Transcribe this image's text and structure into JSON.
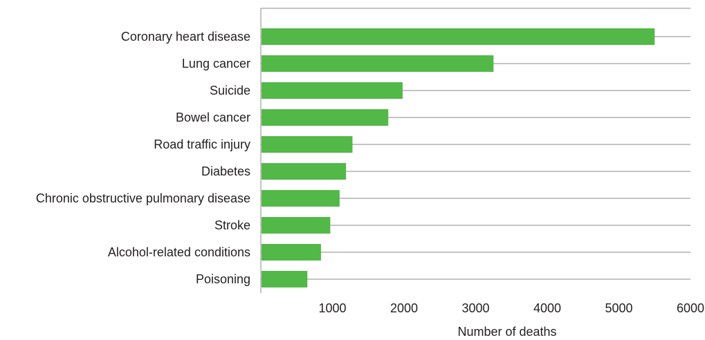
{
  "chart_data": {
    "type": "bar",
    "orientation": "horizontal",
    "categories": [
      "Coronary heart disease",
      "Lung cancer",
      "Suicide",
      "Bowel cancer",
      "Road traffic injury",
      "Diabetes",
      "Chronic obstructive pulmonary disease",
      "Stroke",
      "Alcohol-related conditions",
      "Poisoning"
    ],
    "values": [
      5500,
      3250,
      1980,
      1780,
      1280,
      1190,
      1100,
      970,
      840,
      650
    ],
    "xlabel": "Number of deaths",
    "ylabel": "",
    "xlim": [
      0,
      6000
    ],
    "xticks": [
      1000,
      2000,
      3000,
      4000,
      5000,
      6000
    ],
    "xtick_labels": [
      "1000",
      "2000",
      "3000",
      "4000",
      "5000",
      "6000"
    ],
    "grid": "horizontal lines between categories",
    "bar_color": "#52b848",
    "grid_color": "#8a8a8a",
    "text_color": "#231f20"
  }
}
